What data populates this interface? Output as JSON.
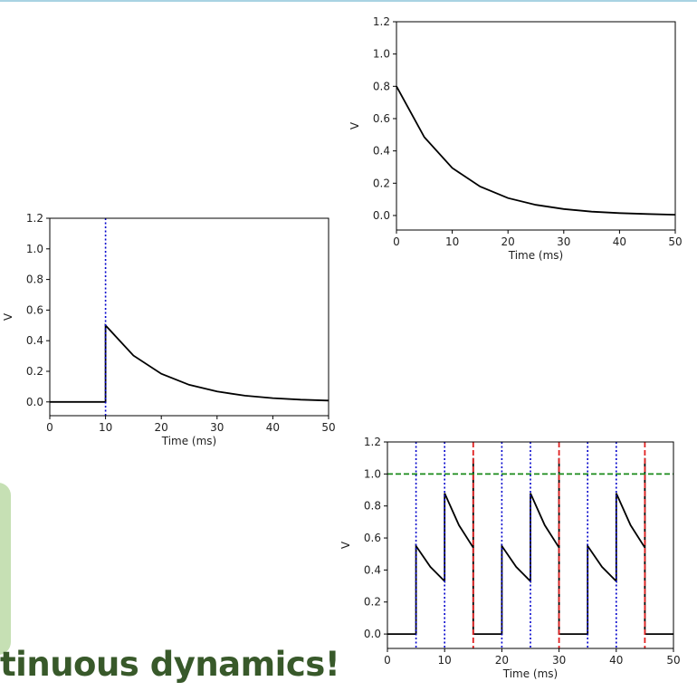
{
  "headline": "tinuous dynamics!",
  "colors": {
    "trace": "#000000",
    "input": "#0000cc",
    "spike": "#e02020",
    "threshold": "#1a8a1a"
  },
  "chart_data": [
    {
      "type": "line",
      "title": "",
      "xlabel": "Time (ms)",
      "ylabel": "V",
      "xlim": [
        0,
        50
      ],
      "ylim": [
        -0.09,
        1.2
      ],
      "xticks": [
        0,
        10,
        20,
        30,
        40,
        50
      ],
      "yticks": [
        0.0,
        0.2,
        0.4,
        0.6,
        0.8,
        1.0,
        1.2
      ],
      "series": [
        {
          "values": [
            [
              0,
              0.8
            ],
            [
              5,
              0.485
            ],
            [
              10,
              0.294
            ],
            [
              15,
              0.179
            ],
            [
              20,
              0.108
            ],
            [
              25,
              0.066
            ],
            [
              30,
              0.04
            ],
            [
              35,
              0.024
            ],
            [
              40,
              0.015
            ],
            [
              45,
              0.009
            ],
            [
              50,
              0.005
            ]
          ]
        }
      ],
      "input_times": [],
      "spike_times": [],
      "threshold": null
    },
    {
      "type": "line",
      "title": "",
      "xlabel": "Time (ms)",
      "ylabel": "V",
      "xlim": [
        0,
        50
      ],
      "ylim": [
        -0.09,
        1.2
      ],
      "xticks": [
        0,
        10,
        20,
        30,
        40,
        50
      ],
      "yticks": [
        0.0,
        0.2,
        0.4,
        0.6,
        0.8,
        1.0,
        1.2
      ],
      "series": [
        {
          "values": [
            [
              0,
              0
            ],
            [
              10,
              0
            ],
            [
              10,
              0.5
            ],
            [
              15,
              0.303
            ],
            [
              20,
              0.184
            ],
            [
              25,
              0.112
            ],
            [
              30,
              0.068
            ],
            [
              35,
              0.041
            ],
            [
              40,
              0.025
            ],
            [
              45,
              0.015
            ],
            [
              50,
              0.009
            ]
          ]
        }
      ],
      "input_times": [
        10
      ],
      "spike_times": [],
      "threshold": null
    },
    {
      "type": "line",
      "title": "",
      "xlabel": "Time (ms)",
      "ylabel": "V",
      "xlim": [
        0,
        50
      ],
      "ylim": [
        -0.09,
        1.2
      ],
      "xticks": [
        0,
        10,
        20,
        30,
        40,
        50
      ],
      "yticks": [
        0.0,
        0.2,
        0.4,
        0.6,
        0.8,
        1.0,
        1.2
      ],
      "series": [
        {
          "values": [
            [
              0,
              0
            ],
            [
              5,
              0
            ],
            [
              5,
              0.55
            ],
            [
              7.5,
              0.42
            ],
            [
              10,
              0.33
            ],
            [
              10,
              0.88
            ],
            [
              12.5,
              0.68
            ],
            [
              15,
              0.54
            ],
            [
              15,
              1.1
            ],
            [
              15,
              0
            ],
            [
              20,
              0
            ],
            [
              20,
              0.55
            ],
            [
              22.5,
              0.42
            ],
            [
              25,
              0.33
            ],
            [
              25,
              0.88
            ],
            [
              27.5,
              0.68
            ],
            [
              30,
              0.54
            ],
            [
              30,
              1.1
            ],
            [
              30,
              0
            ],
            [
              35,
              0
            ],
            [
              35,
              0.55
            ],
            [
              37.5,
              0.42
            ],
            [
              40,
              0.33
            ],
            [
              40,
              0.88
            ],
            [
              42.5,
              0.68
            ],
            [
              45,
              0.54
            ],
            [
              45,
              1.1
            ],
            [
              45,
              0
            ],
            [
              50,
              0
            ]
          ]
        }
      ],
      "input_times": [
        5,
        10,
        20,
        25,
        35,
        40
      ],
      "spike_times": [
        15,
        30,
        45
      ],
      "threshold": 1.0
    }
  ]
}
